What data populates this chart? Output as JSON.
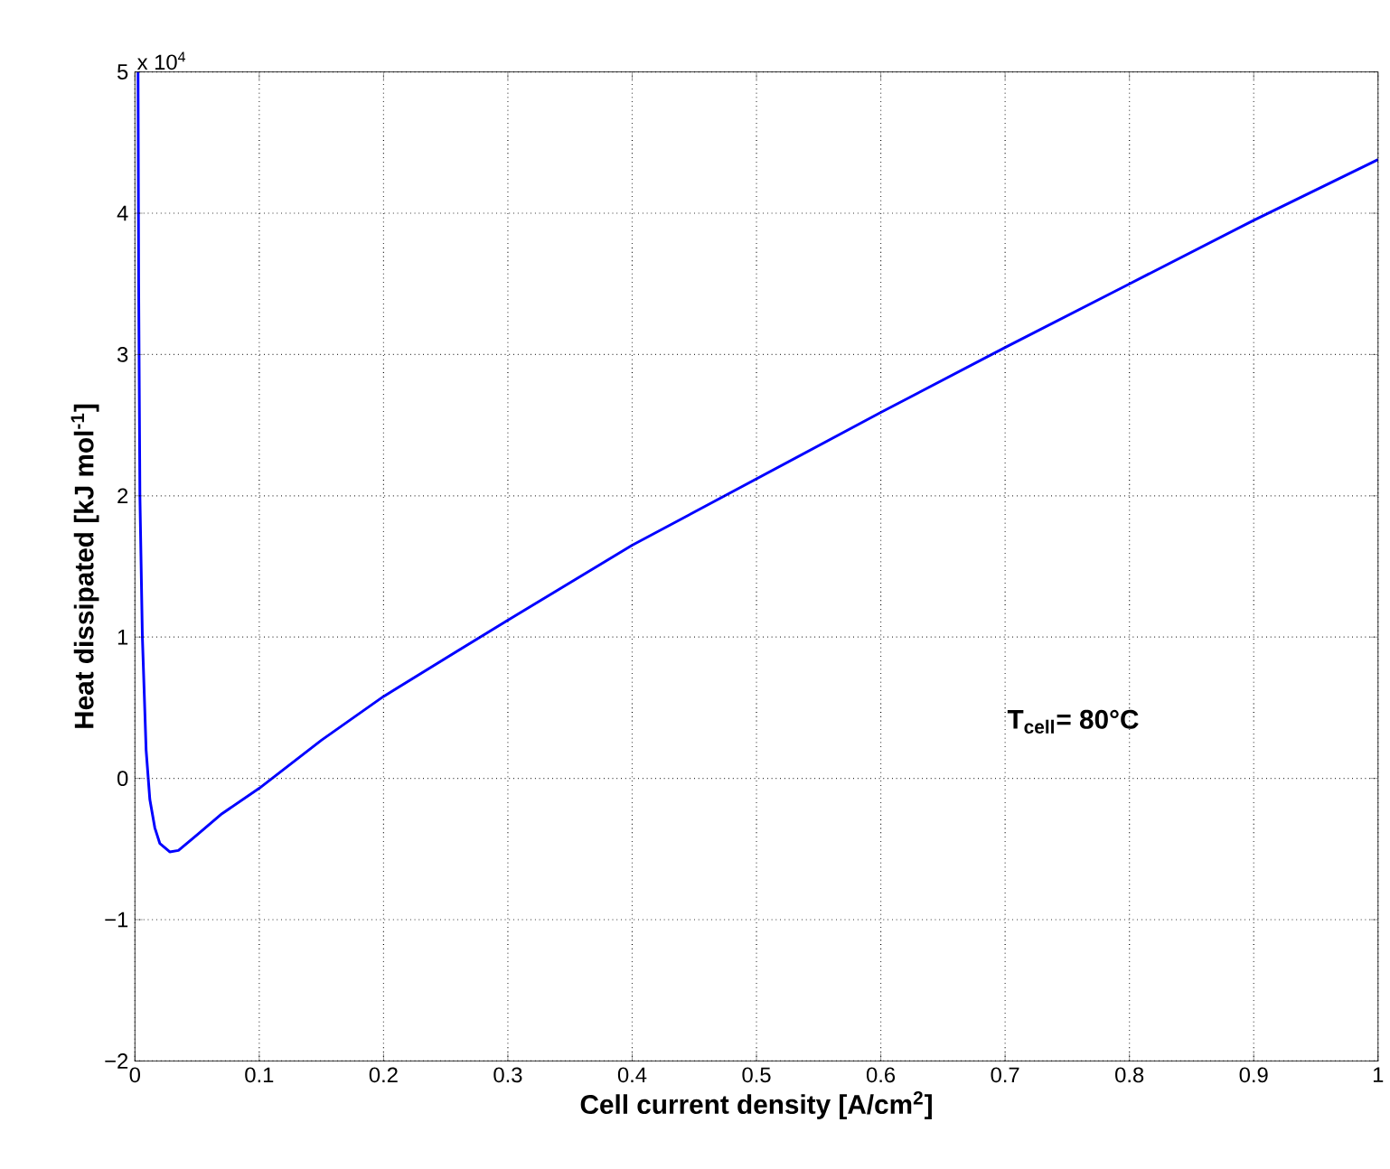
{
  "chart_data": {
    "type": "line",
    "xlabel": "Cell current density [A/cm$^{2}$]",
    "ylabel": "Heat dissipated [kJ mol$^{-1}$]",
    "annotations": [
      "x 10$^{4}$",
      "T$_{cell}$= 80°C"
    ],
    "x": [
      0.0025,
      0.003,
      0.004,
      0.006,
      0.009,
      0.012,
      0.016,
      0.02,
      0.028,
      0.035,
      0.05,
      0.07,
      0.1,
      0.15,
      0.2,
      0.3,
      0.4,
      0.5,
      0.6,
      0.7,
      0.8,
      0.9,
      1.0
    ],
    "series": [
      {
        "color": "#0000ff",
        "values": [
          5.0,
          3.5,
          2.0,
          1.0,
          0.2,
          -0.15,
          -0.35,
          -0.46,
          -0.52,
          -0.51,
          -0.4,
          -0.25,
          -0.07,
          0.27,
          0.58,
          1.12,
          1.65,
          2.12,
          2.59,
          3.05,
          3.5,
          3.95,
          4.38
        ]
      }
    ],
    "xlim": [
      0,
      1
    ],
    "ylim": [
      -2,
      5
    ],
    "xticks": [
      0,
      0.1,
      0.2,
      0.3,
      0.4,
      0.5,
      0.6,
      0.7,
      0.8,
      0.9,
      1
    ],
    "yticks": [
      {
        "value": -2,
        "label": "−2"
      },
      {
        "value": -1,
        "label": "−1"
      },
      0,
      1,
      2,
      3,
      4,
      5
    ],
    "grid": true,
    "marker": "none",
    "line_style": "solid"
  }
}
